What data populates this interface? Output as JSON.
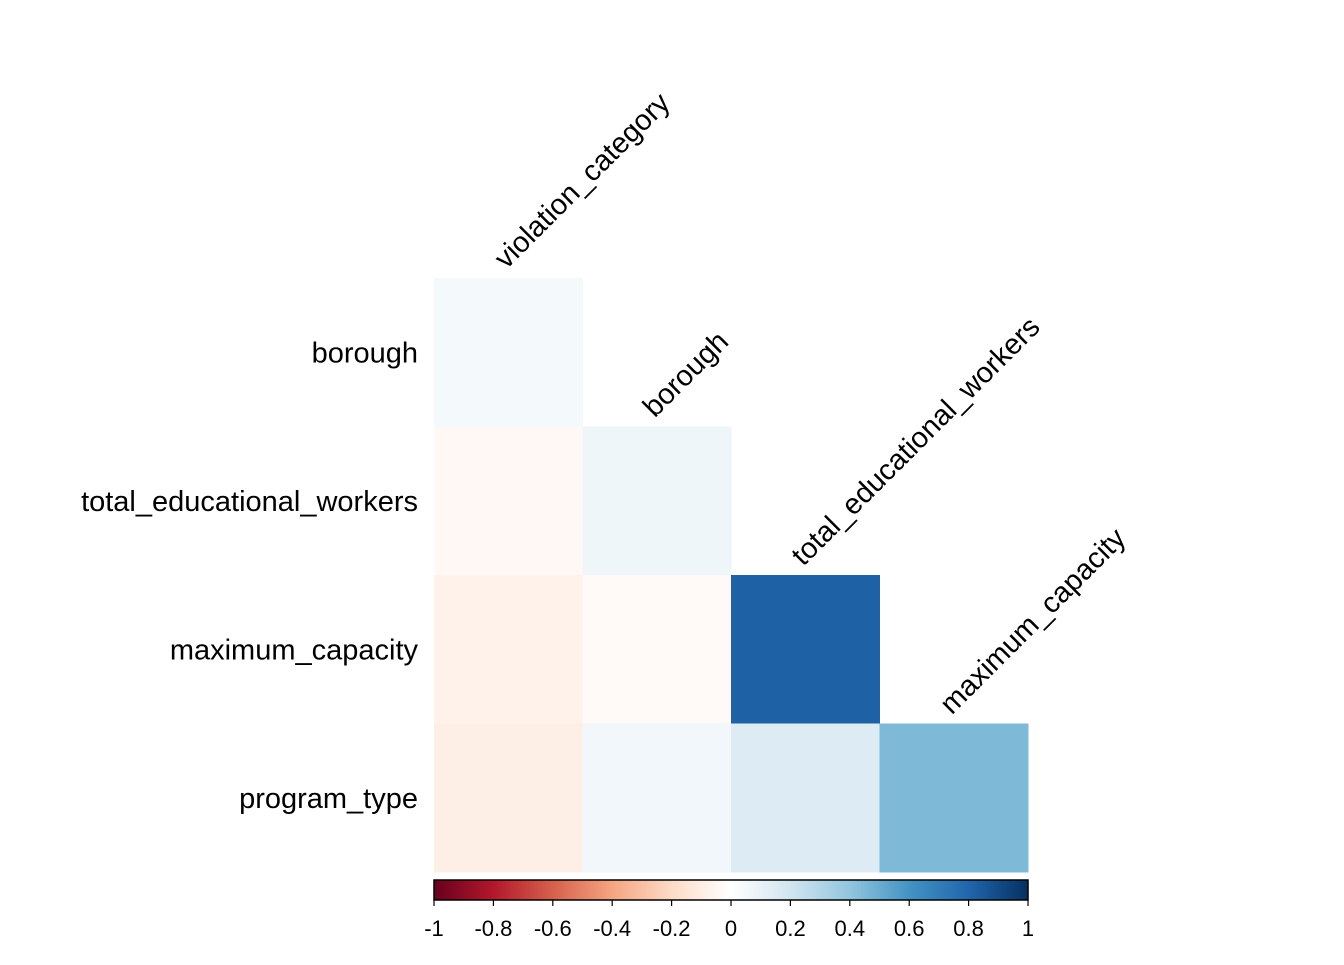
{
  "chart_data": {
    "type": "heatmap",
    "subtype": "correlation-lower-triangle",
    "row_labels": [
      "borough",
      "total_educational_workers",
      "maximum_capacity",
      "program_type"
    ],
    "col_labels": [
      "violation_category",
      "borough",
      "total_educational_workers",
      "maximum_capacity"
    ],
    "values": [
      [
        0.05,
        null,
        null,
        null
      ],
      [
        -0.04,
        0.07,
        null,
        null
      ],
      [
        -0.07,
        -0.03,
        0.82,
        null
      ],
      [
        -0.09,
        0.06,
        0.15,
        0.45
      ]
    ],
    "colorbar": {
      "range": [
        -1,
        1
      ],
      "tick_labels": [
        "-1",
        "-0.8",
        "-0.6",
        "-0.4",
        "-0.2",
        "0",
        "0.2",
        "0.4",
        "0.6",
        "0.8",
        "1"
      ],
      "colormap": "RdBu",
      "stops": [
        "#67001f",
        "#b2182b",
        "#d6604d",
        "#f4a582",
        "#fddbc7",
        "#ffffff",
        "#d1e5f0",
        "#92c5de",
        "#4393c3",
        "#2166ac",
        "#053061"
      ]
    }
  }
}
